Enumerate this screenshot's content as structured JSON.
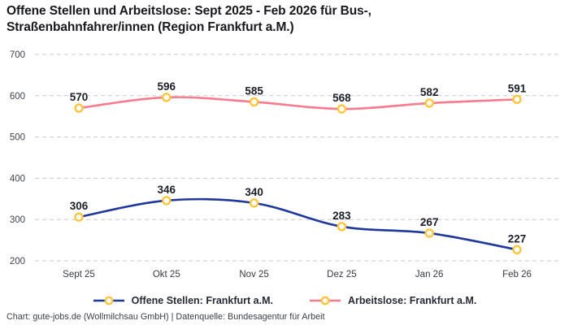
{
  "title": {
    "text": "Offene Stellen und Arbeitslose: Sept 2025 - Feb 2026 für Bus-, Straßenbahnfahrer/innen (Region Frankfurt a.M.)",
    "line1": "Offene Stellen und Arbeitslose: Sept 2025 - Feb 2026 für Bus-,",
    "line2": "Straßenbahnfahrer/innen (Region Frankfurt a.M.)"
  },
  "footer": "Chart: gute-jobs.de (Wollmilchsau GmbH) | Datenquelle: Bundesagentur für Arbeit",
  "legend": [
    {
      "label": "Offene Stellen: Frankfurt a.M.",
      "color": "#1f3799"
    },
    {
      "label": "Arbeitslose: Frankfurt a.M.",
      "color": "#f9798d"
    }
  ],
  "colors": {
    "offene_stellen_line": "#1f3799",
    "arbeitslose_line": "#f9798d",
    "marker_ring": "#ffc53d",
    "marker_fill": "#ffffff",
    "gridline": "#c9c9c9",
    "data_label": "#1b1f27"
  },
  "chart_data": {
    "type": "line",
    "title": "Offene Stellen und Arbeitslose: Sept 2025 - Feb 2026 für Bus-, Straßenbahnfahrer/innen (Region Frankfurt a.M.)",
    "categories": [
      "Sept 25",
      "Okt 25",
      "Nov 25",
      "Dez 25",
      "Jan 26",
      "Feb 26"
    ],
    "series": [
      {
        "name": "Offene Stellen: Frankfurt a.M.",
        "color": "#1f3799",
        "values": [
          306,
          346,
          340,
          283,
          267,
          227
        ]
      },
      {
        "name": "Arbeitslose: Frankfurt a.M.",
        "color": "#f9798d",
        "values": [
          570,
          596,
          585,
          568,
          582,
          591
        ]
      }
    ],
    "xlabel": "",
    "ylabel": "",
    "ylim": [
      200,
      700
    ],
    "yticks": [
      200,
      300,
      400,
      500,
      600,
      700
    ],
    "grid": "horizontal-dashed",
    "data_labels": true,
    "legend_position": "bottom",
    "marker": {
      "shape": "circle",
      "fill": "#ffffff",
      "stroke": "#ffc53d"
    }
  }
}
